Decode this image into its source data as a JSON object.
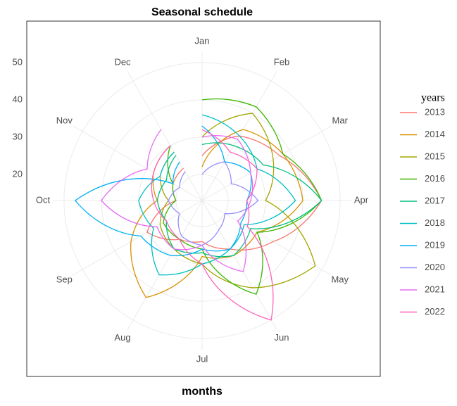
{
  "chart_data": {
    "type": "polar-line",
    "title": "Seasonal schedule",
    "x_label": "months",
    "legend_title": "years",
    "categories": [
      "Jan",
      "Feb",
      "Mar",
      "Apr",
      "May",
      "Jun",
      "Jul",
      "Aug",
      "Sep",
      "Oct",
      "Nov",
      "Dec"
    ],
    "ylim": [
      13,
      53
    ],
    "yticks": [
      20,
      30,
      40,
      50
    ],
    "grid": true,
    "series": [
      {
        "name": "2013",
        "color": "#F8766D",
        "values": [
          25,
          33,
          37,
          45,
          35,
          28,
          24,
          25,
          30,
          20,
          22,
          23
        ]
      },
      {
        "name": "2014",
        "color": "#D89000",
        "values": [
          22,
          35,
          38,
          40,
          30,
          30,
          28,
          43,
          35,
          25,
          28,
          30
        ]
      },
      {
        "name": "2015",
        "color": "#A3A500",
        "values": [
          30,
          40,
          35,
          30,
          48,
          40,
          30,
          28,
          26,
          22,
          26,
          28
        ]
      },
      {
        "name": "2016",
        "color": "#39B600",
        "values": [
          40,
          42,
          38,
          45,
          30,
          42,
          26,
          25,
          25,
          20,
          22,
          30
        ]
      },
      {
        "name": "2017",
        "color": "#00BF7D",
        "values": [
          28,
          30,
          32,
          45,
          28,
          30,
          27,
          28,
          24,
          25,
          24,
          27
        ]
      },
      {
        "name": "2018",
        "color": "#00BFC4",
        "values": [
          36,
          33,
          30,
          38,
          26,
          28,
          30,
          36,
          28,
          30,
          26,
          28
        ]
      },
      {
        "name": "2019",
        "color": "#00B0F6",
        "values": [
          33,
          25,
          28,
          25,
          25,
          28,
          26,
          30,
          32,
          47,
          22,
          25
        ]
      },
      {
        "name": "2020",
        "color": "#9590FF",
        "values": [
          20,
          25,
          22,
          28,
          20,
          22,
          25,
          24,
          20,
          22,
          20,
          22
        ]
      },
      {
        "name": "2021",
        "color": "#E76BF3",
        "values": [
          30,
          32,
          28,
          26,
          24,
          35,
          25,
          28,
          27,
          40,
          30,
          35
        ]
      },
      {
        "name": "2022",
        "color": "#FF62BC",
        "values": [
          32,
          28,
          30,
          25,
          27,
          50,
          30,
          25,
          24,
          26,
          28,
          30
        ]
      }
    ]
  }
}
